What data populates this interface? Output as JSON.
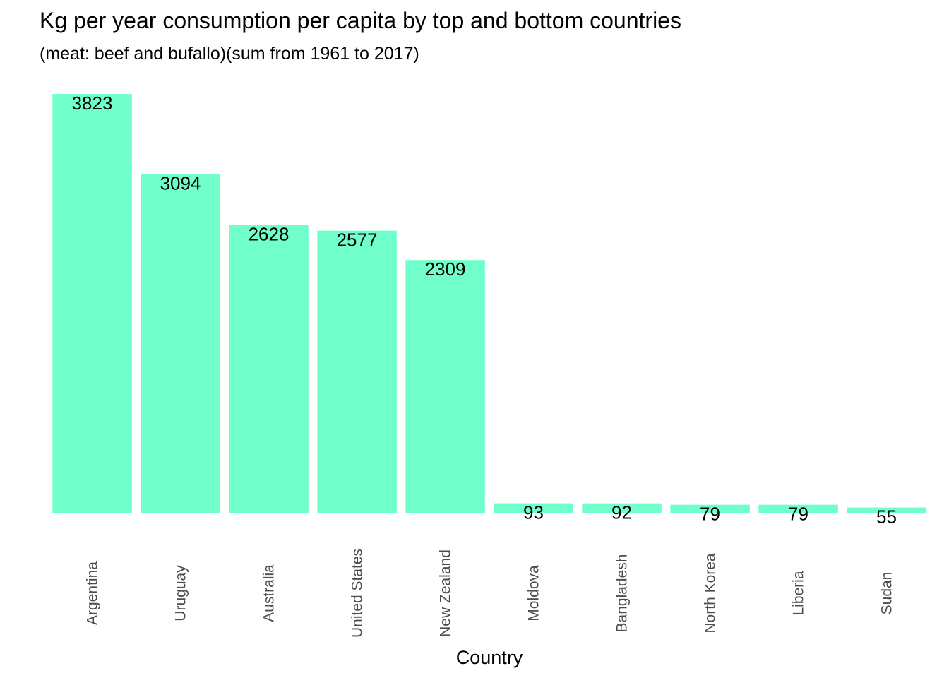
{
  "chart_data": {
    "type": "bar",
    "title": "Kg per year consumption per capita by top and bottom countries",
    "subtitle": "(meat: beef and bufallo)(sum from 1961 to 2017)",
    "xlabel": "Country",
    "ylabel": "",
    "categories": [
      "Argentina",
      "Uruguay",
      "Australia",
      "United States",
      "New Zealand",
      "Moldova",
      "Bangladesh",
      "North Korea",
      "Liberia",
      "Sudan"
    ],
    "values": [
      3823,
      3094,
      2628,
      2577,
      2309,
      93,
      92,
      79,
      79,
      55
    ],
    "data_labels": [
      "3823",
      "3094",
      "2628",
      "2577",
      "2309",
      "93",
      "92",
      "79",
      "79",
      "55"
    ],
    "ylim": [
      0,
      3823
    ],
    "grid": false,
    "legend": "none",
    "colors": {
      "bar": "#70ffcb",
      "background": "#ffffff"
    }
  }
}
